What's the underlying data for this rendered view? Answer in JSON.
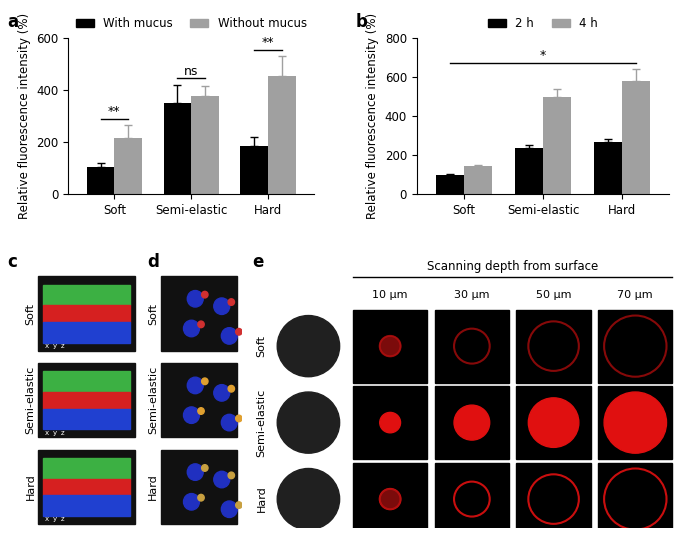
{
  "chart_data": [
    {
      "type": "bar",
      "panel_label": "a",
      "y_label": "Relative fluorescence intensity (%)",
      "categories": [
        "Soft",
        "Semi-elastic",
        "Hard"
      ],
      "series": [
        {
          "name": "With mucus",
          "color": "#000000",
          "values": [
            105,
            350,
            183
          ],
          "errors": [
            15,
            70,
            35
          ]
        },
        {
          "name": "Without mucus",
          "color": "#a0a0a0",
          "values": [
            215,
            378,
            455
          ],
          "errors": [
            50,
            38,
            75
          ]
        }
      ],
      "ylim": [
        0,
        600
      ],
      "yticks": [
        0,
        200,
        400,
        600
      ],
      "legend": "upper center",
      "annotations": [
        {
          "text": "**",
          "categories": [
            "Soft"
          ]
        },
        {
          "text": "ns",
          "categories": [
            "Semi-elastic"
          ]
        },
        {
          "text": "**",
          "categories": [
            "Hard"
          ]
        }
      ]
    },
    {
      "type": "bar",
      "panel_label": "b",
      "y_label": "Relative fluorescence intensity (%)",
      "categories": [
        "Soft",
        "Semi-elastic",
        "Hard"
      ],
      "series": [
        {
          "name": "2 h",
          "color": "#000000",
          "values": [
            100,
            235,
            268
          ],
          "errors": [
            5,
            18,
            15
          ]
        },
        {
          "name": "4 h",
          "color": "#a0a0a0",
          "values": [
            143,
            497,
            580
          ],
          "errors": [
            8,
            42,
            58
          ]
        }
      ],
      "ylim": [
        0,
        800
      ],
      "yticks": [
        0,
        200,
        400,
        600,
        800
      ],
      "legend": "upper center",
      "annotations": [
        {
          "text": "*",
          "categories": [
            "Soft",
            "Hard"
          ]
        }
      ]
    }
  ],
  "image_panels": {
    "c": {
      "panel_label": "c",
      "rows": [
        "Soft",
        "Semi-elastic",
        "Hard"
      ],
      "axis_labels": [
        "x",
        "y",
        "z"
      ]
    },
    "d": {
      "panel_label": "d",
      "rows": [
        "Soft",
        "Semi-elastic",
        "Hard"
      ]
    },
    "e": {
      "panel_label": "e",
      "header": "Scanning depth from surface",
      "columns": [
        "10 μm",
        "30 μm",
        "50 μm",
        "70 μm"
      ],
      "rows": [
        "Soft",
        "Semi-elastic",
        "Hard"
      ]
    }
  }
}
